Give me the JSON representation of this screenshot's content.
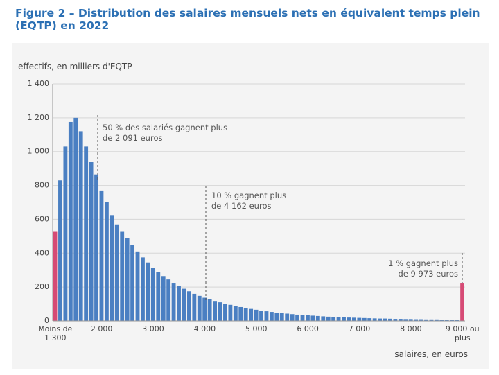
{
  "chart_data": {
    "type": "bar",
    "title": "Figure 2 – Distribution des salaires mensuels nets en équivalent temps plein (EQTP) en 2022",
    "y_label": "effectifs, en milliers d'EQTP",
    "x_label": "salaires, en euros",
    "annotations": [
      "50 % des salariés gagnent plus de 2 091 euros",
      "10 % gagnent plus de 4 162 euros",
      "1 % gagnent plus de 9 973 euros"
    ],
    "categories": [
      "Moins de 1 300",
      null,
      null,
      null,
      null,
      null,
      null,
      null,
      null,
      "2 000",
      null,
      null,
      null,
      null,
      null,
      null,
      null,
      null,
      null,
      "3 000",
      null,
      null,
      null,
      null,
      null,
      null,
      null,
      null,
      null,
      "4 000",
      null,
      null,
      null,
      null,
      null,
      null,
      null,
      null,
      null,
      "5 000",
      null,
      null,
      null,
      null,
      null,
      null,
      null,
      null,
      null,
      "6 000",
      null,
      null,
      null,
      null,
      null,
      null,
      null,
      null,
      null,
      "7 000",
      null,
      null,
      null,
      null,
      null,
      null,
      null,
      null,
      null,
      "8 000",
      null,
      null,
      null,
      null,
      null,
      null,
      null,
      null,
      null,
      "9 000 ou plus"
    ],
    "values": [
      530,
      830,
      1030,
      1175,
      1200,
      1120,
      1030,
      940,
      865,
      770,
      700,
      625,
      570,
      530,
      490,
      450,
      410,
      375,
      345,
      315,
      290,
      265,
      245,
      225,
      205,
      190,
      175,
      160,
      148,
      137,
      127,
      118,
      110,
      102,
      95,
      88,
      82,
      76,
      71,
      66,
      61,
      57,
      53,
      49,
      46,
      43,
      40,
      37,
      35,
      33,
      31,
      29,
      27,
      25,
      24,
      22,
      21,
      20,
      19,
      18,
      17,
      16,
      15,
      14,
      14,
      13,
      12,
      12,
      11,
      11,
      10,
      10,
      9,
      9,
      9,
      8,
      8,
      8,
      7,
      225
    ],
    "colors": [
      "#d64b75",
      "#4a7fc2",
      "#4a7fc2",
      "#4a7fc2",
      "#4a7fc2",
      "#4a7fc2",
      "#4a7fc2",
      "#4a7fc2",
      "#4a7fc2",
      "#4a7fc2",
      "#4a7fc2",
      "#4a7fc2",
      "#4a7fc2",
      "#4a7fc2",
      "#4a7fc2",
      "#4a7fc2",
      "#4a7fc2",
      "#4a7fc2",
      "#4a7fc2",
      "#4a7fc2",
      "#4a7fc2",
      "#4a7fc2",
      "#4a7fc2",
      "#4a7fc2",
      "#4a7fc2",
      "#4a7fc2",
      "#4a7fc2",
      "#4a7fc2",
      "#4a7fc2",
      "#4a7fc2",
      "#4a7fc2",
      "#4a7fc2",
      "#4a7fc2",
      "#4a7fc2",
      "#4a7fc2",
      "#4a7fc2",
      "#4a7fc2",
      "#4a7fc2",
      "#4a7fc2",
      "#4a7fc2",
      "#4a7fc2",
      "#4a7fc2",
      "#4a7fc2",
      "#4a7fc2",
      "#4a7fc2",
      "#4a7fc2",
      "#4a7fc2",
      "#4a7fc2",
      "#4a7fc2",
      "#4a7fc2",
      "#4a7fc2",
      "#4a7fc2",
      "#4a7fc2",
      "#4a7fc2",
      "#4a7fc2",
      "#4a7fc2",
      "#4a7fc2",
      "#4a7fc2",
      "#4a7fc2",
      "#4a7fc2",
      "#4a7fc2",
      "#4a7fc2",
      "#4a7fc2",
      "#4a7fc2",
      "#4a7fc2",
      "#4a7fc2",
      "#4a7fc2",
      "#4a7fc2",
      "#4a7fc2",
      "#4a7fc2",
      "#4a7fc2",
      "#4a7fc2",
      "#4a7fc2",
      "#4a7fc2",
      "#4a7fc2",
      "#4a7fc2",
      "#4a7fc2",
      "#4a7fc2",
      "#4a7fc2",
      "#d64b75"
    ],
    "ylim": [
      0,
      1400
    ],
    "yticks": [
      0,
      200,
      400,
      600,
      800,
      {
        "value": 1000,
        "label": "1 000"
      },
      {
        "value": 1200,
        "label": "1 200"
      },
      {
        "value": 1400,
        "label": "1 400"
      }
    ],
    "grid": true
  }
}
